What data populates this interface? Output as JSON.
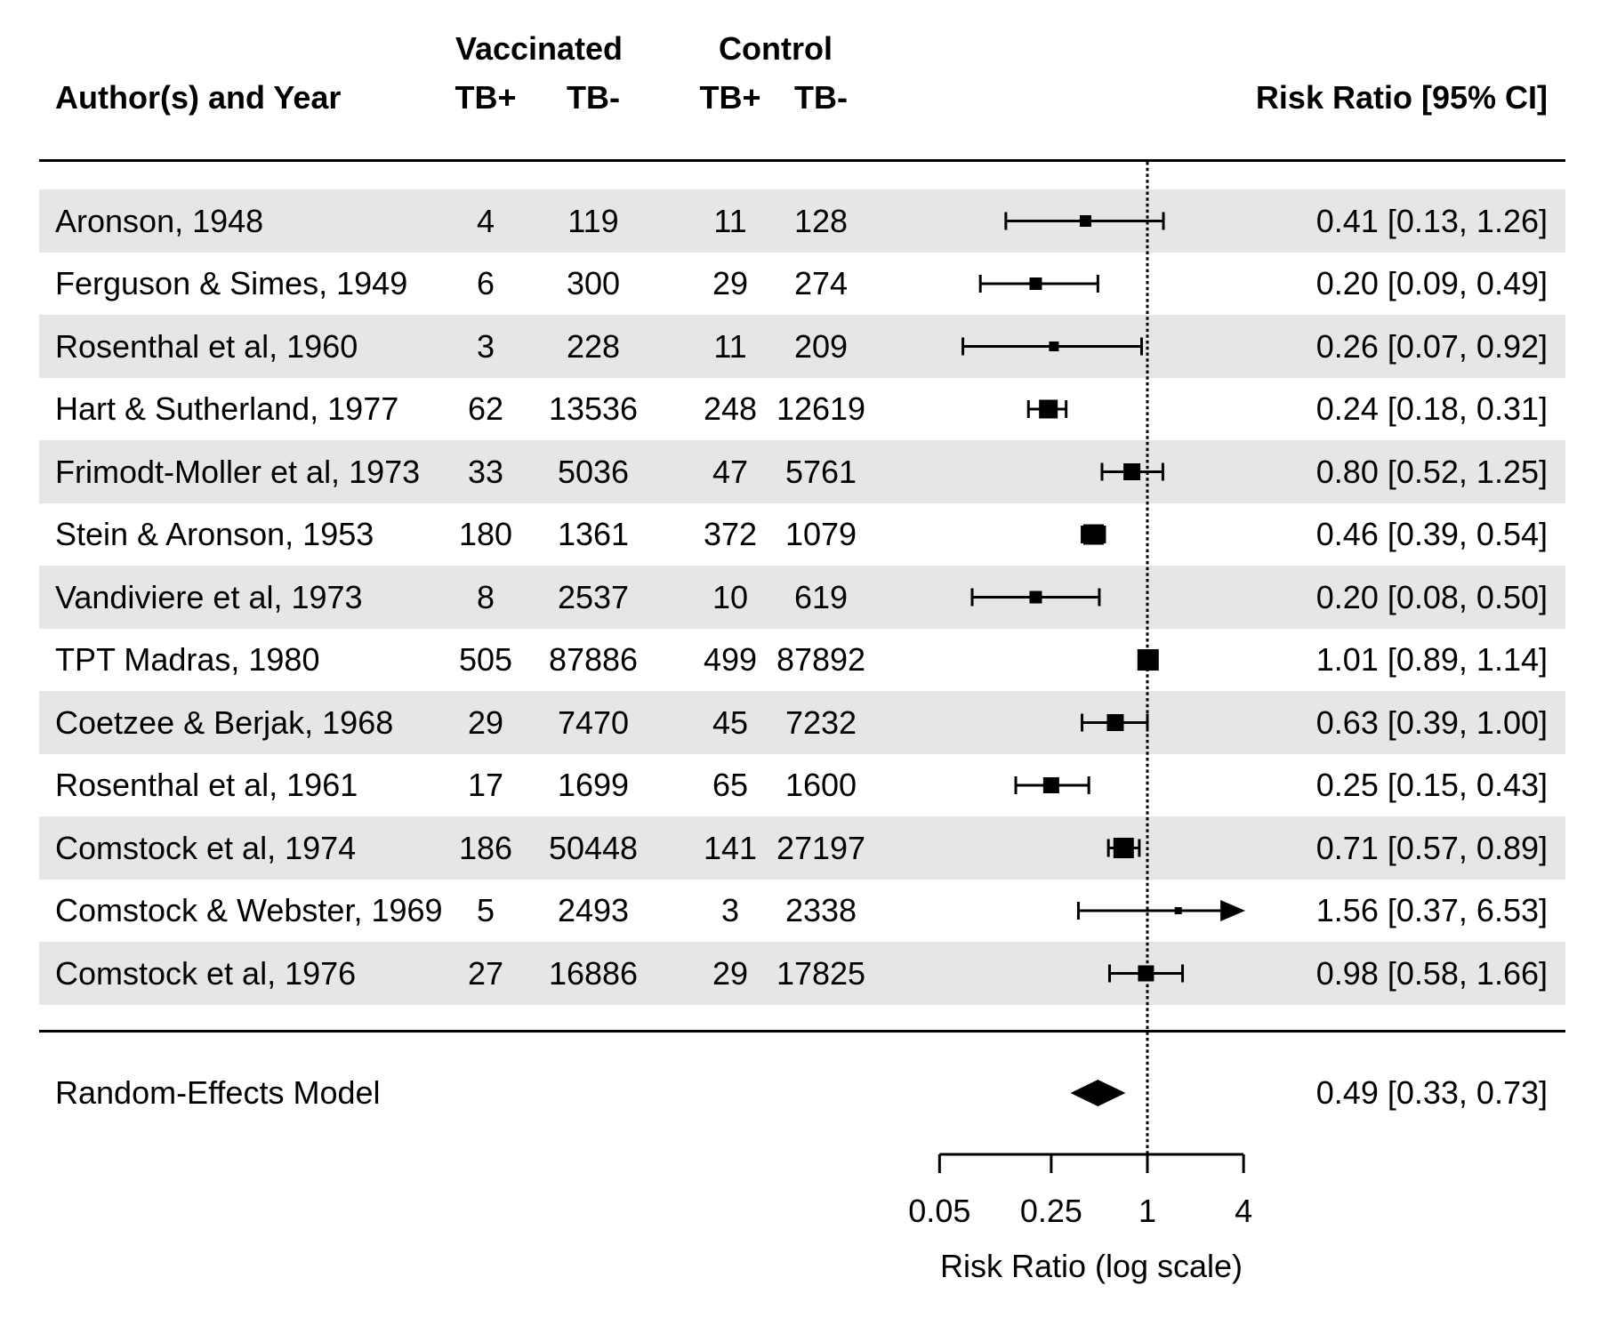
{
  "header": {
    "group1": "Vaccinated",
    "group2": "Control",
    "author_col": "Author(s) and Year",
    "subcols": [
      "TB+",
      "TB-",
      "TB+",
      "TB-"
    ],
    "effect_col": "Risk Ratio [95% CI]"
  },
  "summary": {
    "label": "Random-Effects Model",
    "rr": 0.49,
    "ci_low": 0.33,
    "ci_high": 0.73,
    "estimate_text": "0.49 [0.33, 0.73]"
  },
  "axis": {
    "title": "Risk Ratio (log scale)",
    "ticks": [
      0.05,
      0.25,
      1,
      4
    ],
    "tick_labels": [
      "0.05",
      "0.25",
      "1",
      "4"
    ],
    "reference_value": 1,
    "scale": "log"
  },
  "colors": {
    "stripe": "#e6e6e6",
    "ink": "#000000"
  },
  "chart_data": {
    "type": "forest",
    "xlim": [
      0.05,
      4
    ],
    "studies": [
      {
        "author": "Aronson, 1948",
        "vac_tb_pos": "4",
        "vac_tb_neg": "119",
        "ctl_tb_pos": "11",
        "ctl_tb_neg": "128",
        "rr": 0.41,
        "ci_low": 0.13,
        "ci_high": 1.26,
        "estimate_text": "0.41 [0.13, 1.26]",
        "marker_size": 13
      },
      {
        "author": "Ferguson & Simes, 1949",
        "vac_tb_pos": "6",
        "vac_tb_neg": "300",
        "ctl_tb_pos": "29",
        "ctl_tb_neg": "274",
        "rr": 0.2,
        "ci_low": 0.09,
        "ci_high": 0.49,
        "estimate_text": "0.20 [0.09, 0.49]",
        "marker_size": 14
      },
      {
        "author": "Rosenthal et al, 1960",
        "vac_tb_pos": "3",
        "vac_tb_neg": "228",
        "ctl_tb_pos": "11",
        "ctl_tb_neg": "209",
        "rr": 0.26,
        "ci_low": 0.07,
        "ci_high": 0.92,
        "estimate_text": "0.26 [0.07, 0.92]",
        "marker_size": 11
      },
      {
        "author": "Hart & Sutherland, 1977",
        "vac_tb_pos": "62",
        "vac_tb_neg": "13536",
        "ctl_tb_pos": "248",
        "ctl_tb_neg": "12619",
        "rr": 0.24,
        "ci_low": 0.18,
        "ci_high": 0.31,
        "estimate_text": "0.24 [0.18, 0.31]",
        "marker_size": 21
      },
      {
        "author": "Frimodt-Moller et al, 1973",
        "vac_tb_pos": "33",
        "vac_tb_neg": "5036",
        "ctl_tb_pos": "47",
        "ctl_tb_neg": "5761",
        "rr": 0.8,
        "ci_low": 0.52,
        "ci_high": 1.25,
        "estimate_text": "0.80 [0.52, 1.25]",
        "marker_size": 19
      },
      {
        "author": "Stein & Aronson, 1953",
        "vac_tb_pos": "180",
        "vac_tb_neg": "1361",
        "ctl_tb_pos": "372",
        "ctl_tb_neg": "1079",
        "rr": 0.46,
        "ci_low": 0.39,
        "ci_high": 0.54,
        "estimate_text": "0.46 [0.39, 0.54]",
        "marker_size": 23
      },
      {
        "author": "Vandiviere et al, 1973",
        "vac_tb_pos": "8",
        "vac_tb_neg": "2537",
        "ctl_tb_pos": "10",
        "ctl_tb_neg": "619",
        "rr": 0.2,
        "ci_low": 0.08,
        "ci_high": 0.5,
        "estimate_text": "0.20 [0.08, 0.50]",
        "marker_size": 14
      },
      {
        "author": "TPT Madras, 1980",
        "vac_tb_pos": "505",
        "vac_tb_neg": "87886",
        "ctl_tb_pos": "499",
        "ctl_tb_neg": "87892",
        "rr": 1.01,
        "ci_low": 0.89,
        "ci_high": 1.14,
        "estimate_text": "1.01 [0.89, 1.14]",
        "marker_size": 24
      },
      {
        "author": "Coetzee & Berjak, 1968",
        "vac_tb_pos": "29",
        "vac_tb_neg": "7470",
        "ctl_tb_pos": "45",
        "ctl_tb_neg": "7232",
        "rr": 0.63,
        "ci_low": 0.39,
        "ci_high": 1.0,
        "estimate_text": "0.63 [0.39, 1.00]",
        "marker_size": 19
      },
      {
        "author": "Rosenthal et al, 1961",
        "vac_tb_pos": "17",
        "vac_tb_neg": "1699",
        "ctl_tb_pos": "65",
        "ctl_tb_neg": "1600",
        "rr": 0.25,
        "ci_low": 0.15,
        "ci_high": 0.43,
        "estimate_text": "0.25 [0.15, 0.43]",
        "marker_size": 18
      },
      {
        "author": "Comstock et al, 1974",
        "vac_tb_pos": "186",
        "vac_tb_neg": "50448",
        "ctl_tb_pos": "141",
        "ctl_tb_neg": "27197",
        "rr": 0.71,
        "ci_low": 0.57,
        "ci_high": 0.89,
        "estimate_text": "0.71 [0.57, 0.89]",
        "marker_size": 23
      },
      {
        "author": "Comstock & Webster, 1969",
        "vac_tb_pos": "5",
        "vac_tb_neg": "2493",
        "ctl_tb_pos": "3",
        "ctl_tb_neg": "2338",
        "rr": 1.56,
        "ci_low": 0.37,
        "ci_high": 6.53,
        "estimate_text": "1.56 [0.37, 6.53]",
        "marker_size": 8,
        "clipped_high": true
      },
      {
        "author": "Comstock et al, 1976",
        "vac_tb_pos": "27",
        "vac_tb_neg": "16886",
        "ctl_tb_pos": "29",
        "ctl_tb_neg": "17825",
        "rr": 0.98,
        "ci_low": 0.58,
        "ci_high": 1.66,
        "estimate_text": "0.98 [0.58, 1.66]",
        "marker_size": 18
      }
    ]
  }
}
